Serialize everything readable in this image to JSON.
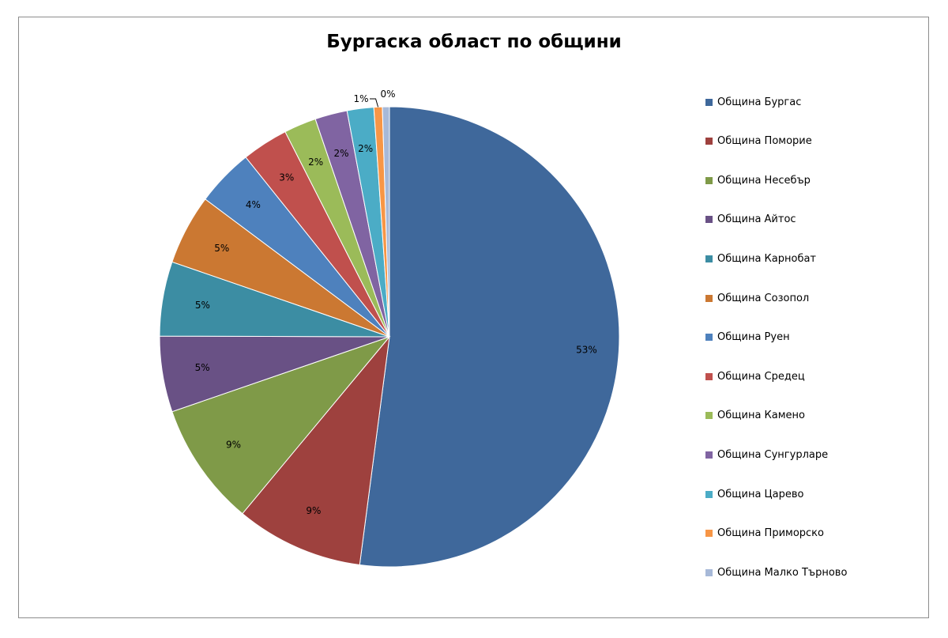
{
  "chart_data": {
    "type": "pie",
    "title": "Бургаска област по общини",
    "legend_position": "right",
    "categories": [
      "Община Бургас",
      "Община Поморие",
      "Община Несебър",
      "Община Айтос",
      "Община Карнобат",
      "Община Созопол",
      "Община Руен",
      "Община Средец",
      "Община Камено",
      "Община Сунгурларе",
      "Община Царево",
      "Община Приморско",
      "Община Малко Търново"
    ],
    "values": [
      53,
      9,
      9,
      5,
      5,
      5,
      4,
      3,
      2,
      2,
      2,
      1,
      0
    ],
    "labels": [
      "53%",
      "9%",
      "9%",
      "5%",
      "5%",
      "5%",
      "4%",
      "3%",
      "2%",
      "2%",
      "2%",
      "1%",
      "0%"
    ],
    "colors": [
      "#3f689b",
      "#9e413e",
      "#7f9a48",
      "#695185",
      "#3c8da3",
      "#cb7832",
      "#4e81bd",
      "#c0504d",
      "#9bbb59",
      "#8064a2",
      "#4bacc6",
      "#f79646",
      "#a7b9d8"
    ]
  }
}
